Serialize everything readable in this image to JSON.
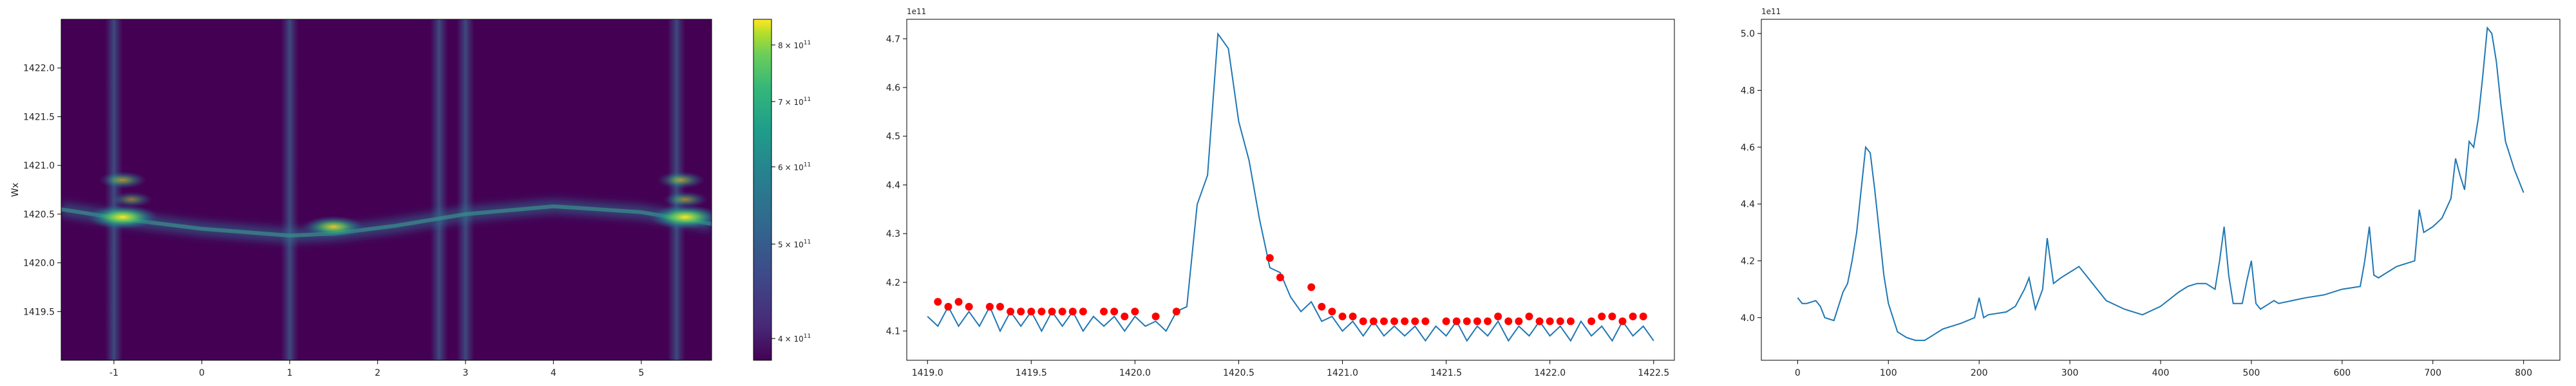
{
  "chart_data": [
    {
      "type": "heatmap",
      "ylabel": "Wx",
      "xlim": [
        -1.6,
        5.8
      ],
      "ylim": [
        1419.0,
        1422.5
      ],
      "x_ticks": [
        -1,
        0,
        1,
        2,
        3,
        4,
        5
      ],
      "y_ticks": [
        1419.5,
        1420.0,
        1420.5,
        1421.0,
        1421.5,
        1422.0
      ],
      "y_ticklabels": [
        "1419.5",
        "1420.0",
        "1420.5",
        "1421.0",
        "1421.5",
        "1422.0"
      ],
      "colormap": "viridis",
      "colorbar": {
        "scale": "log",
        "vmin": 380000000000.0,
        "vmax": 850000000000.0,
        "ticks": [
          400000000000.0,
          500000000000.0,
          600000000000.0,
          700000000000.0,
          800000000000.0
        ],
        "tick_bases": [
          "4",
          "5",
          "6",
          "7",
          "8"
        ],
        "tick_unit": "× 10",
        "tick_exponent": "11"
      },
      "vertical_bands": [
        -1.0,
        1.0,
        2.7,
        3.0,
        5.4
      ],
      "ridge": [
        [
          -1.6,
          1420.55
        ],
        [
          -0.9,
          1420.45
        ],
        [
          0,
          1420.35
        ],
        [
          1,
          1420.28
        ],
        [
          1.5,
          1420.3
        ],
        [
          2.2,
          1420.38
        ],
        [
          3,
          1420.5
        ],
        [
          4,
          1420.58
        ],
        [
          5,
          1420.52
        ],
        [
          5.8,
          1420.4
        ]
      ],
      "hotspots": [
        {
          "x": -0.9,
          "y": 1420.47,
          "intensity": 1.0
        },
        {
          "x": -0.9,
          "y": 1420.85,
          "intensity": 0.6
        },
        {
          "x": -0.8,
          "y": 1420.65,
          "intensity": 0.5
        },
        {
          "x": 1.5,
          "y": 1420.37,
          "intensity": 0.85
        },
        {
          "x": 5.5,
          "y": 1420.47,
          "intensity": 1.0
        },
        {
          "x": 5.45,
          "y": 1420.85,
          "intensity": 0.6
        },
        {
          "x": 5.5,
          "y": 1420.65,
          "intensity": 0.55
        }
      ]
    },
    {
      "type": "line",
      "offset_text": "1e11",
      "xlim": [
        1418.9,
        1422.6
      ],
      "ylim": [
        4.04,
        4.74
      ],
      "x_ticks": [
        1419.0,
        1419.5,
        1420.0,
        1420.5,
        1421.0,
        1421.5,
        1422.0,
        1422.5
      ],
      "x_ticklabels": [
        "1419.0",
        "1419.5",
        "1420.0",
        "1420.5",
        "1421.0",
        "1421.5",
        "1422.0",
        "1422.5"
      ],
      "y_ticks": [
        4.1,
        4.2,
        4.3,
        4.4,
        4.5,
        4.6,
        4.7
      ],
      "y_ticklabels": [
        "4.1",
        "4.2",
        "4.3",
        "4.4",
        "4.5",
        "4.6",
        "4.7"
      ],
      "line_color": "#1f77b4",
      "marker_color": "#ff0000",
      "x": [
        1419.0,
        1419.05,
        1419.1,
        1419.15,
        1419.2,
        1419.25,
        1419.3,
        1419.35,
        1419.4,
        1419.45,
        1419.5,
        1419.55,
        1419.6,
        1419.65,
        1419.7,
        1419.75,
        1419.8,
        1419.85,
        1419.9,
        1419.95,
        1420.0,
        1420.05,
        1420.1,
        1420.15,
        1420.2,
        1420.25,
        1420.3,
        1420.35,
        1420.4,
        1420.45,
        1420.5,
        1420.55,
        1420.6,
        1420.65,
        1420.7,
        1420.75,
        1420.8,
        1420.85,
        1420.9,
        1420.95,
        1421.0,
        1421.05,
        1421.1,
        1421.15,
        1421.2,
        1421.25,
        1421.3,
        1421.35,
        1421.4,
        1421.45,
        1421.5,
        1421.55,
        1421.6,
        1421.65,
        1421.7,
        1421.75,
        1421.8,
        1421.85,
        1421.9,
        1421.95,
        1422.0,
        1422.05,
        1422.1,
        1422.15,
        1422.2,
        1422.25,
        1422.3,
        1422.35,
        1422.4,
        1422.45,
        1422.5
      ],
      "y": [
        4.13,
        4.11,
        4.15,
        4.11,
        4.14,
        4.11,
        4.15,
        4.1,
        4.14,
        4.11,
        4.14,
        4.1,
        4.14,
        4.11,
        4.14,
        4.1,
        4.13,
        4.11,
        4.13,
        4.1,
        4.13,
        4.11,
        4.12,
        4.1,
        4.14,
        4.15,
        4.36,
        4.42,
        4.71,
        4.68,
        4.53,
        4.45,
        4.33,
        4.23,
        4.22,
        4.17,
        4.14,
        4.16,
        4.12,
        4.13,
        4.1,
        4.12,
        4.09,
        4.12,
        4.09,
        4.11,
        4.09,
        4.11,
        4.08,
        4.11,
        4.09,
        4.12,
        4.08,
        4.11,
        4.09,
        4.12,
        4.08,
        4.11,
        4.09,
        4.12,
        4.09,
        4.11,
        4.08,
        4.12,
        4.09,
        4.11,
        4.08,
        4.12,
        4.09,
        4.11,
        4.08
      ],
      "peaks_x": [
        1419.05,
        1419.1,
        1419.15,
        1419.2,
        1419.3,
        1419.35,
        1419.4,
        1419.45,
        1419.5,
        1419.55,
        1419.6,
        1419.65,
        1419.7,
        1419.75,
        1419.85,
        1419.9,
        1419.95,
        1420.0,
        1420.1,
        1420.2,
        1420.65,
        1420.7,
        1420.85,
        1420.9,
        1420.95,
        1421.0,
        1421.05,
        1421.1,
        1421.15,
        1421.2,
        1421.25,
        1421.3,
        1421.35,
        1421.4,
        1421.5,
        1421.55,
        1421.6,
        1421.65,
        1421.7,
        1421.75,
        1421.8,
        1421.85,
        1421.9,
        1421.95,
        1422.0,
        1422.05,
        1422.1,
        1422.2,
        1422.25,
        1422.3,
        1422.35,
        1422.4,
        1422.45
      ],
      "peaks_y": [
        4.16,
        4.15,
        4.16,
        4.15,
        4.15,
        4.15,
        4.14,
        4.14,
        4.14,
        4.14,
        4.14,
        4.14,
        4.14,
        4.14,
        4.14,
        4.14,
        4.13,
        4.14,
        4.13,
        4.14,
        4.25,
        4.21,
        4.19,
        4.15,
        4.14,
        4.13,
        4.13,
        4.12,
        4.12,
        4.12,
        4.12,
        4.12,
        4.12,
        4.12,
        4.12,
        4.12,
        4.12,
        4.12,
        4.12,
        4.13,
        4.12,
        4.12,
        4.13,
        4.12,
        4.12,
        4.12,
        4.12,
        4.12,
        4.13,
        4.13,
        4.12,
        4.13,
        4.13
      ]
    },
    {
      "type": "line",
      "offset_text": "1e11",
      "xlim": [
        -40,
        840
      ],
      "ylim": [
        3.85,
        5.05
      ],
      "x_ticks": [
        0,
        100,
        200,
        300,
        400,
        500,
        600,
        700,
        800
      ],
      "x_ticklabels": [
        "0",
        "100",
        "200",
        "300",
        "400",
        "500",
        "600",
        "700",
        "800"
      ],
      "y_ticks": [
        4.0,
        4.2,
        4.4,
        4.6,
        4.8,
        5.0
      ],
      "y_ticklabels": [
        "4.0",
        "4.2",
        "4.4",
        "4.6",
        "4.8",
        "5.0"
      ],
      "line_color": "#1f77b4",
      "x": [
        0,
        5,
        10,
        20,
        25,
        30,
        40,
        50,
        55,
        60,
        65,
        70,
        75,
        80,
        85,
        90,
        95,
        100,
        110,
        120,
        130,
        140,
        150,
        160,
        180,
        195,
        200,
        205,
        210,
        230,
        240,
        250,
        255,
        262,
        270,
        275,
        282,
        290,
        300,
        310,
        320,
        330,
        340,
        360,
        380,
        400,
        420,
        430,
        440,
        450,
        460,
        465,
        470,
        475,
        480,
        490,
        495,
        500,
        505,
        510,
        520,
        525,
        530,
        560,
        580,
        600,
        620,
        625,
        630,
        635,
        640,
        660,
        680,
        685,
        690,
        700,
        710,
        720,
        725,
        730,
        735,
        740,
        745,
        750,
        755,
        760,
        765,
        770,
        775,
        780,
        790,
        800
      ],
      "y": [
        4.07,
        4.05,
        4.05,
        4.06,
        4.04,
        4.0,
        3.99,
        4.09,
        4.12,
        4.2,
        4.3,
        4.45,
        4.6,
        4.58,
        4.45,
        4.3,
        4.15,
        4.05,
        3.95,
        3.93,
        3.92,
        3.92,
        3.94,
        3.96,
        3.98,
        4.0,
        4.07,
        4.0,
        4.01,
        4.02,
        4.04,
        4.1,
        4.14,
        4.03,
        4.1,
        4.28,
        4.12,
        4.14,
        4.16,
        4.18,
        4.14,
        4.1,
        4.06,
        4.03,
        4.01,
        4.04,
        4.09,
        4.11,
        4.12,
        4.12,
        4.1,
        4.2,
        4.32,
        4.15,
        4.05,
        4.05,
        4.13,
        4.2,
        4.05,
        4.03,
        4.05,
        4.06,
        4.05,
        4.07,
        4.08,
        4.1,
        4.11,
        4.2,
        4.32,
        4.15,
        4.14,
        4.18,
        4.2,
        4.38,
        4.3,
        4.32,
        4.35,
        4.42,
        4.56,
        4.5,
        4.45,
        4.62,
        4.6,
        4.7,
        4.85,
        5.02,
        5.0,
        4.9,
        4.75,
        4.62,
        4.52,
        4.44
      ]
    }
  ]
}
